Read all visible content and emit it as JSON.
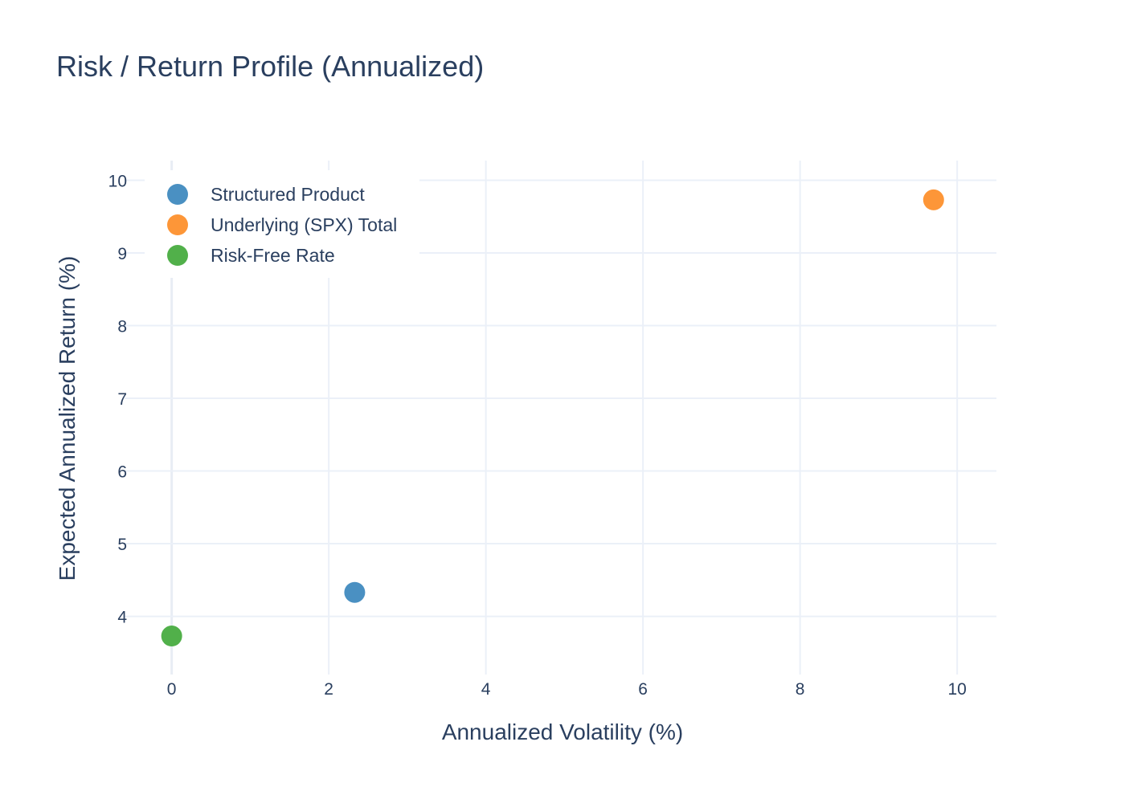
{
  "chart_data": {
    "type": "scatter",
    "title": "Risk / Return Profile (Annualized)",
    "xlabel": "Annualized Volatility (%)",
    "ylabel": "Expected Annualized Return (%)",
    "xlim": [
      -0.6,
      10.5
    ],
    "ylim": [
      3.2,
      10.27
    ],
    "xticks": [
      "0",
      "2",
      "4",
      "6",
      "8",
      "10"
    ],
    "yticks": [
      "4",
      "5",
      "6",
      "7",
      "8",
      "9",
      "10"
    ],
    "grid": true,
    "legend_position": "top-left",
    "series": [
      {
        "name": "Structured Product",
        "color": "#4a90c2",
        "x": [
          2.33
        ],
        "y": [
          4.33
        ]
      },
      {
        "name": "Underlying (SPX) Total",
        "color": "#fd9638",
        "x": [
          9.7
        ],
        "y": [
          9.73
        ]
      },
      {
        "name": "Risk-Free Rate",
        "color": "#51b04a",
        "x": [
          0.0
        ],
        "y": [
          3.73
        ]
      }
    ]
  }
}
